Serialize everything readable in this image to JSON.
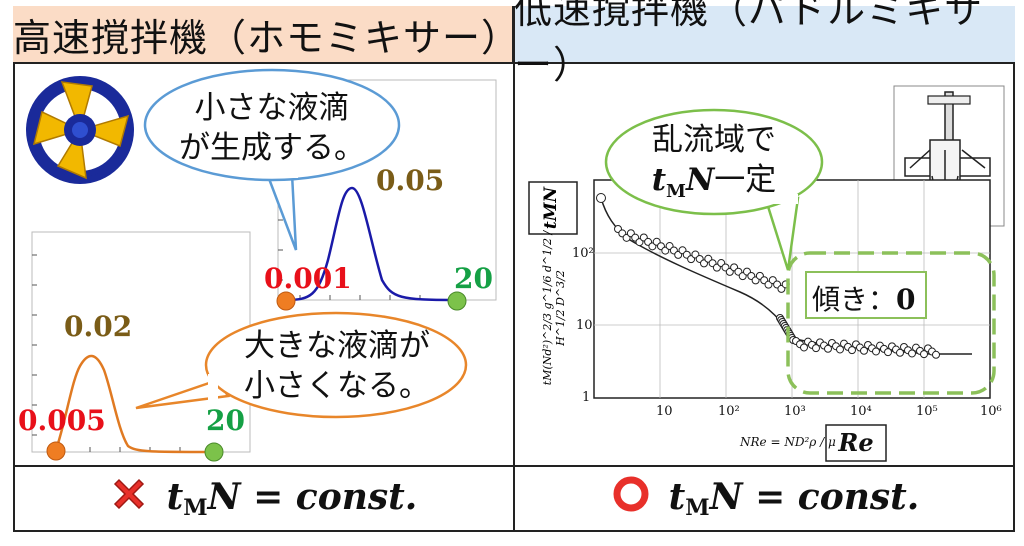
{
  "headers": {
    "left": "高速撹拌機（ホモミキサー）",
    "right": "低速撹拌機（パドルミキサー）"
  },
  "left_panel": {
    "bubble_top": {
      "line1": "小さな液滴",
      "line2": "が生成する。"
    },
    "bubble_bottom": {
      "line1": "大きな液滴が",
      "line2": "小さくなる。"
    },
    "top_curve": {
      "left_label": "0.001",
      "peak_label": "0.05",
      "right_label": "20"
    },
    "bottom_curve": {
      "left_label": "0.005",
      "peak_label": "0.02",
      "right_label": "20"
    }
  },
  "right_panel": {
    "bubble": {
      "line1": "乱流域で",
      "line2_var": "t",
      "line2_sub": "M",
      "line2_var2": "N",
      "line2_rest": "一定"
    },
    "slope_box": {
      "label": "傾き：",
      "value": "0"
    },
    "y_label": "tMN",
    "y_formula": "tM(Nd²)^2/3 g^1/6 d^1/2 / H^1/2 D^3/2",
    "x_formula": "NRe = ND²ρ / μ",
    "x_label": "Re",
    "x_ticks": [
      "10",
      "10²",
      "10³",
      "10⁴",
      "10⁵",
      "10⁶"
    ],
    "y_ticks": [
      "10²",
      "10",
      "1"
    ]
  },
  "bottom": {
    "left": {
      "mark": "✕",
      "var": "t",
      "sub": "M",
      "var2": "N",
      "rest": " = const."
    },
    "right": {
      "mark": "○",
      "var": "t",
      "sub": "M",
      "var2": "N",
      "rest": " = const."
    }
  },
  "colors": {
    "header_left_bg": "#fbdcc6",
    "header_right_bg": "#d9e8f6",
    "top_curve": "#1a1aa8",
    "bottom_curve": "#e07a22",
    "bubble_left_top_stroke": "#5b9bd5",
    "bubble_left_bottom_stroke": "#e8862a",
    "bubble_right_stroke": "#7cbf4a",
    "slope_region_stroke": "#8cc05a",
    "red_label": "#e8101a",
    "olive_label": "#7a5c17",
    "green_label": "#15a045"
  }
}
